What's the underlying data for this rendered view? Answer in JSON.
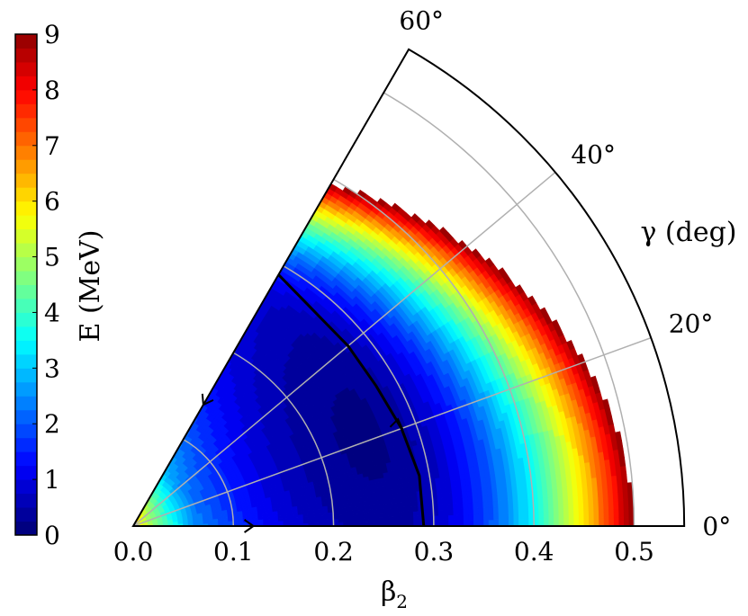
{
  "chart_data": {
    "type": "heatmap",
    "projection": "polar-sector",
    "title": "",
    "xlabel": "β",
    "xlabel_sub": "2",
    "angle_label": "γ (deg)",
    "r_lim": [
      0,
      0.55
    ],
    "theta_lim_deg": [
      0,
      60
    ],
    "r_ticks": [
      "0.0",
      "0.1",
      "0.2",
      "0.3",
      "0.4",
      "0.5"
    ],
    "theta_ticks": [
      "0°",
      "20°",
      "40°",
      "60°"
    ],
    "grid": true,
    "colorbar": {
      "label": "E (MeV)",
      "min": 0,
      "max": 9,
      "ticks": [
        "0",
        "1",
        "2",
        "3",
        "4",
        "5",
        "6",
        "7",
        "8",
        "9"
      ],
      "colormap": "jet",
      "levels": 36
    },
    "energy_surface": {
      "minimum": {
        "beta2": 0.25,
        "gamma_deg": 22,
        "E": 0.2
      },
      "max_shown_E": 9,
      "note_region_above_9MeV": "white (not drawn)"
    },
    "path": {
      "points": [
        {
          "beta2": 0.29,
          "gamma_deg": 0
        },
        {
          "beta2": 0.29,
          "gamma_deg": 10
        },
        {
          "beta2": 0.285,
          "gamma_deg": 20
        },
        {
          "beta2": 0.28,
          "gamma_deg": 30
        },
        {
          "beta2": 0.28,
          "gamma_deg": 40
        },
        {
          "beta2": 0.29,
          "gamma_deg": 60
        }
      ],
      "color": "#000000"
    },
    "arrows": [
      {
        "beta2": 0.12,
        "gamma_deg": 0,
        "direction": "right"
      },
      {
        "beta2": 0.14,
        "gamma_deg": 60,
        "direction": "down"
      },
      {
        "beta2": 0.285,
        "gamma_deg": 22,
        "direction": "up"
      }
    ]
  }
}
